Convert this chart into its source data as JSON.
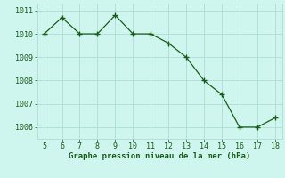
{
  "x": [
    5,
    6,
    7,
    8,
    9,
    10,
    11,
    12,
    13,
    14,
    15,
    16,
    17,
    18
  ],
  "y": [
    1010.0,
    1010.7,
    1010.0,
    1010.0,
    1010.8,
    1010.0,
    1010.0,
    1009.6,
    1009.0,
    1008.0,
    1007.4,
    1006.0,
    1006.0,
    1006.4
  ],
  "line_color": "#1a5c1a",
  "bg_color": "#cef5ee",
  "grid_color": "#aeddd6",
  "xlabel": "Graphe pression niveau de la mer (hPa)",
  "xlabel_color": "#1a5c1a",
  "xlabel_fontsize": 6.5,
  "xlim": [
    4.6,
    18.4
  ],
  "ylim": [
    1005.5,
    1011.3
  ],
  "yticks": [
    1006,
    1007,
    1008,
    1009,
    1010,
    1011
  ],
  "xticks": [
    5,
    6,
    7,
    8,
    9,
    10,
    11,
    12,
    13,
    14,
    15,
    16,
    17,
    18
  ],
  "tick_color": "#1a5c1a",
  "tick_fontsize": 6.0
}
